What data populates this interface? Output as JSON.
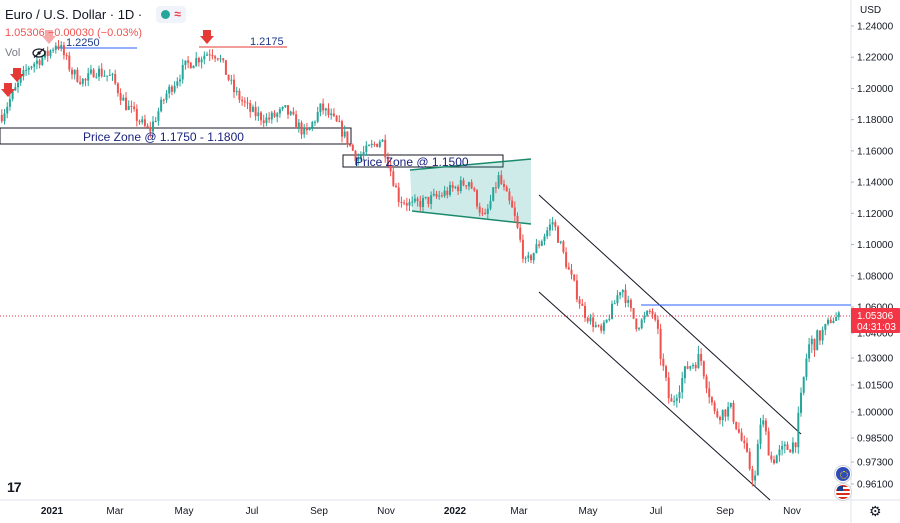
{
  "legend": {
    "title": "Euro / U.S. Dollar · 1D ·",
    "ohlc": "1.05306 −0.00030 (−0.03%)",
    "vol": "Vol"
  },
  "chart_data": {
    "type": "line",
    "series": [
      {
        "x": [
          "2020-11-15",
          "2020-11-25",
          "2020-12-10",
          "2020-12-28",
          "2021-01-06",
          "2021-01-20",
          "2021-02-01",
          "2021-02-10",
          "2021-02-26",
          "2021-03-10",
          "2021-03-31",
          "2021-04-15",
          "2021-05-03",
          "2021-05-25",
          "2021-06-01",
          "2021-06-15",
          "2021-06-30",
          "2021-07-15",
          "2021-08-01",
          "2021-08-20",
          "2021-09-03",
          "2021-09-20",
          "2021-10-06",
          "2021-10-28",
          "2021-11-12",
          "2021-11-24",
          "2021-12-15",
          "2022-01-03",
          "2022-01-14",
          "2022-01-28",
          "2022-02-10",
          "2022-02-24",
          "2022-03-07",
          "2022-03-31",
          "2022-04-14",
          "2022-04-28",
          "2022-05-13",
          "2022-05-31",
          "2022-06-14",
          "2022-06-27",
          "2022-07-14",
          "2022-07-29",
          "2022-08-10",
          "2022-08-23",
          "2022-09-06",
          "2022-09-28",
          "2022-10-04",
          "2022-10-13",
          "2022-11-04",
          "2022-11-15",
          "2022-11-28",
          "2022-12-06",
          "2022-12-15"
        ],
        "y": [
          1.183,
          1.196,
          1.214,
          1.222,
          1.23,
          1.21,
          1.204,
          1.212,
          1.207,
          1.19,
          1.172,
          1.196,
          1.215,
          1.224,
          1.221,
          1.198,
          1.185,
          1.18,
          1.186,
          1.17,
          1.188,
          1.175,
          1.155,
          1.168,
          1.13,
          1.125,
          1.13,
          1.137,
          1.141,
          1.115,
          1.143,
          1.12,
          1.087,
          1.115,
          1.083,
          1.055,
          1.04,
          1.074,
          1.045,
          1.058,
          1.003,
          1.025,
          1.03,
          0.998,
          1.002,
          0.962,
          0.998,
          0.974,
          0.983,
          1.034,
          1.04,
          1.05,
          1.053
        ]
      }
    ],
    "ylim": [
      0.95,
      1.25
    ],
    "y_ticks": [
      "1.24000",
      "1.22000",
      "1.20000",
      "1.18000",
      "1.16000",
      "1.14000",
      "1.12000",
      "1.10000",
      "1.08000",
      "1.06000",
      "1.04000",
      "1.03000",
      "1.01500",
      "1.00000",
      "0.98500",
      "0.97300",
      "0.96100"
    ],
    "x_ticks": [
      {
        "label": "2021",
        "bold": true
      },
      {
        "label": "Mar",
        "bold": false
      },
      {
        "label": "May",
        "bold": false
      },
      {
        "label": "Jul",
        "bold": false
      },
      {
        "label": "Sep",
        "bold": false
      },
      {
        "label": "Nov",
        "bold": false
      },
      {
        "label": "2022",
        "bold": true
      },
      {
        "label": "Mar",
        "bold": false
      },
      {
        "label": "May",
        "bold": false
      },
      {
        "label": "Jul",
        "bold": false
      },
      {
        "label": "Sep",
        "bold": false
      },
      {
        "label": "Nov",
        "bold": false
      }
    ],
    "currency_label": "USD",
    "last_price": "1.05306",
    "countdown": "04:31:03",
    "annotations": {
      "price_zone_1": "Price Zone @ 1.1750 - 1.1800",
      "price_zone_2": "Price Zone @ 1.1500",
      "level_1": "1.2250",
      "level_2": "1.2175"
    },
    "colors": {
      "up": "#26a69a",
      "down": "#ef5350",
      "zone_line": "#2962ff",
      "channel_fill": "#26a69a",
      "annotation_text": "#1a237e",
      "last_price_tag": "#f23645"
    }
  }
}
